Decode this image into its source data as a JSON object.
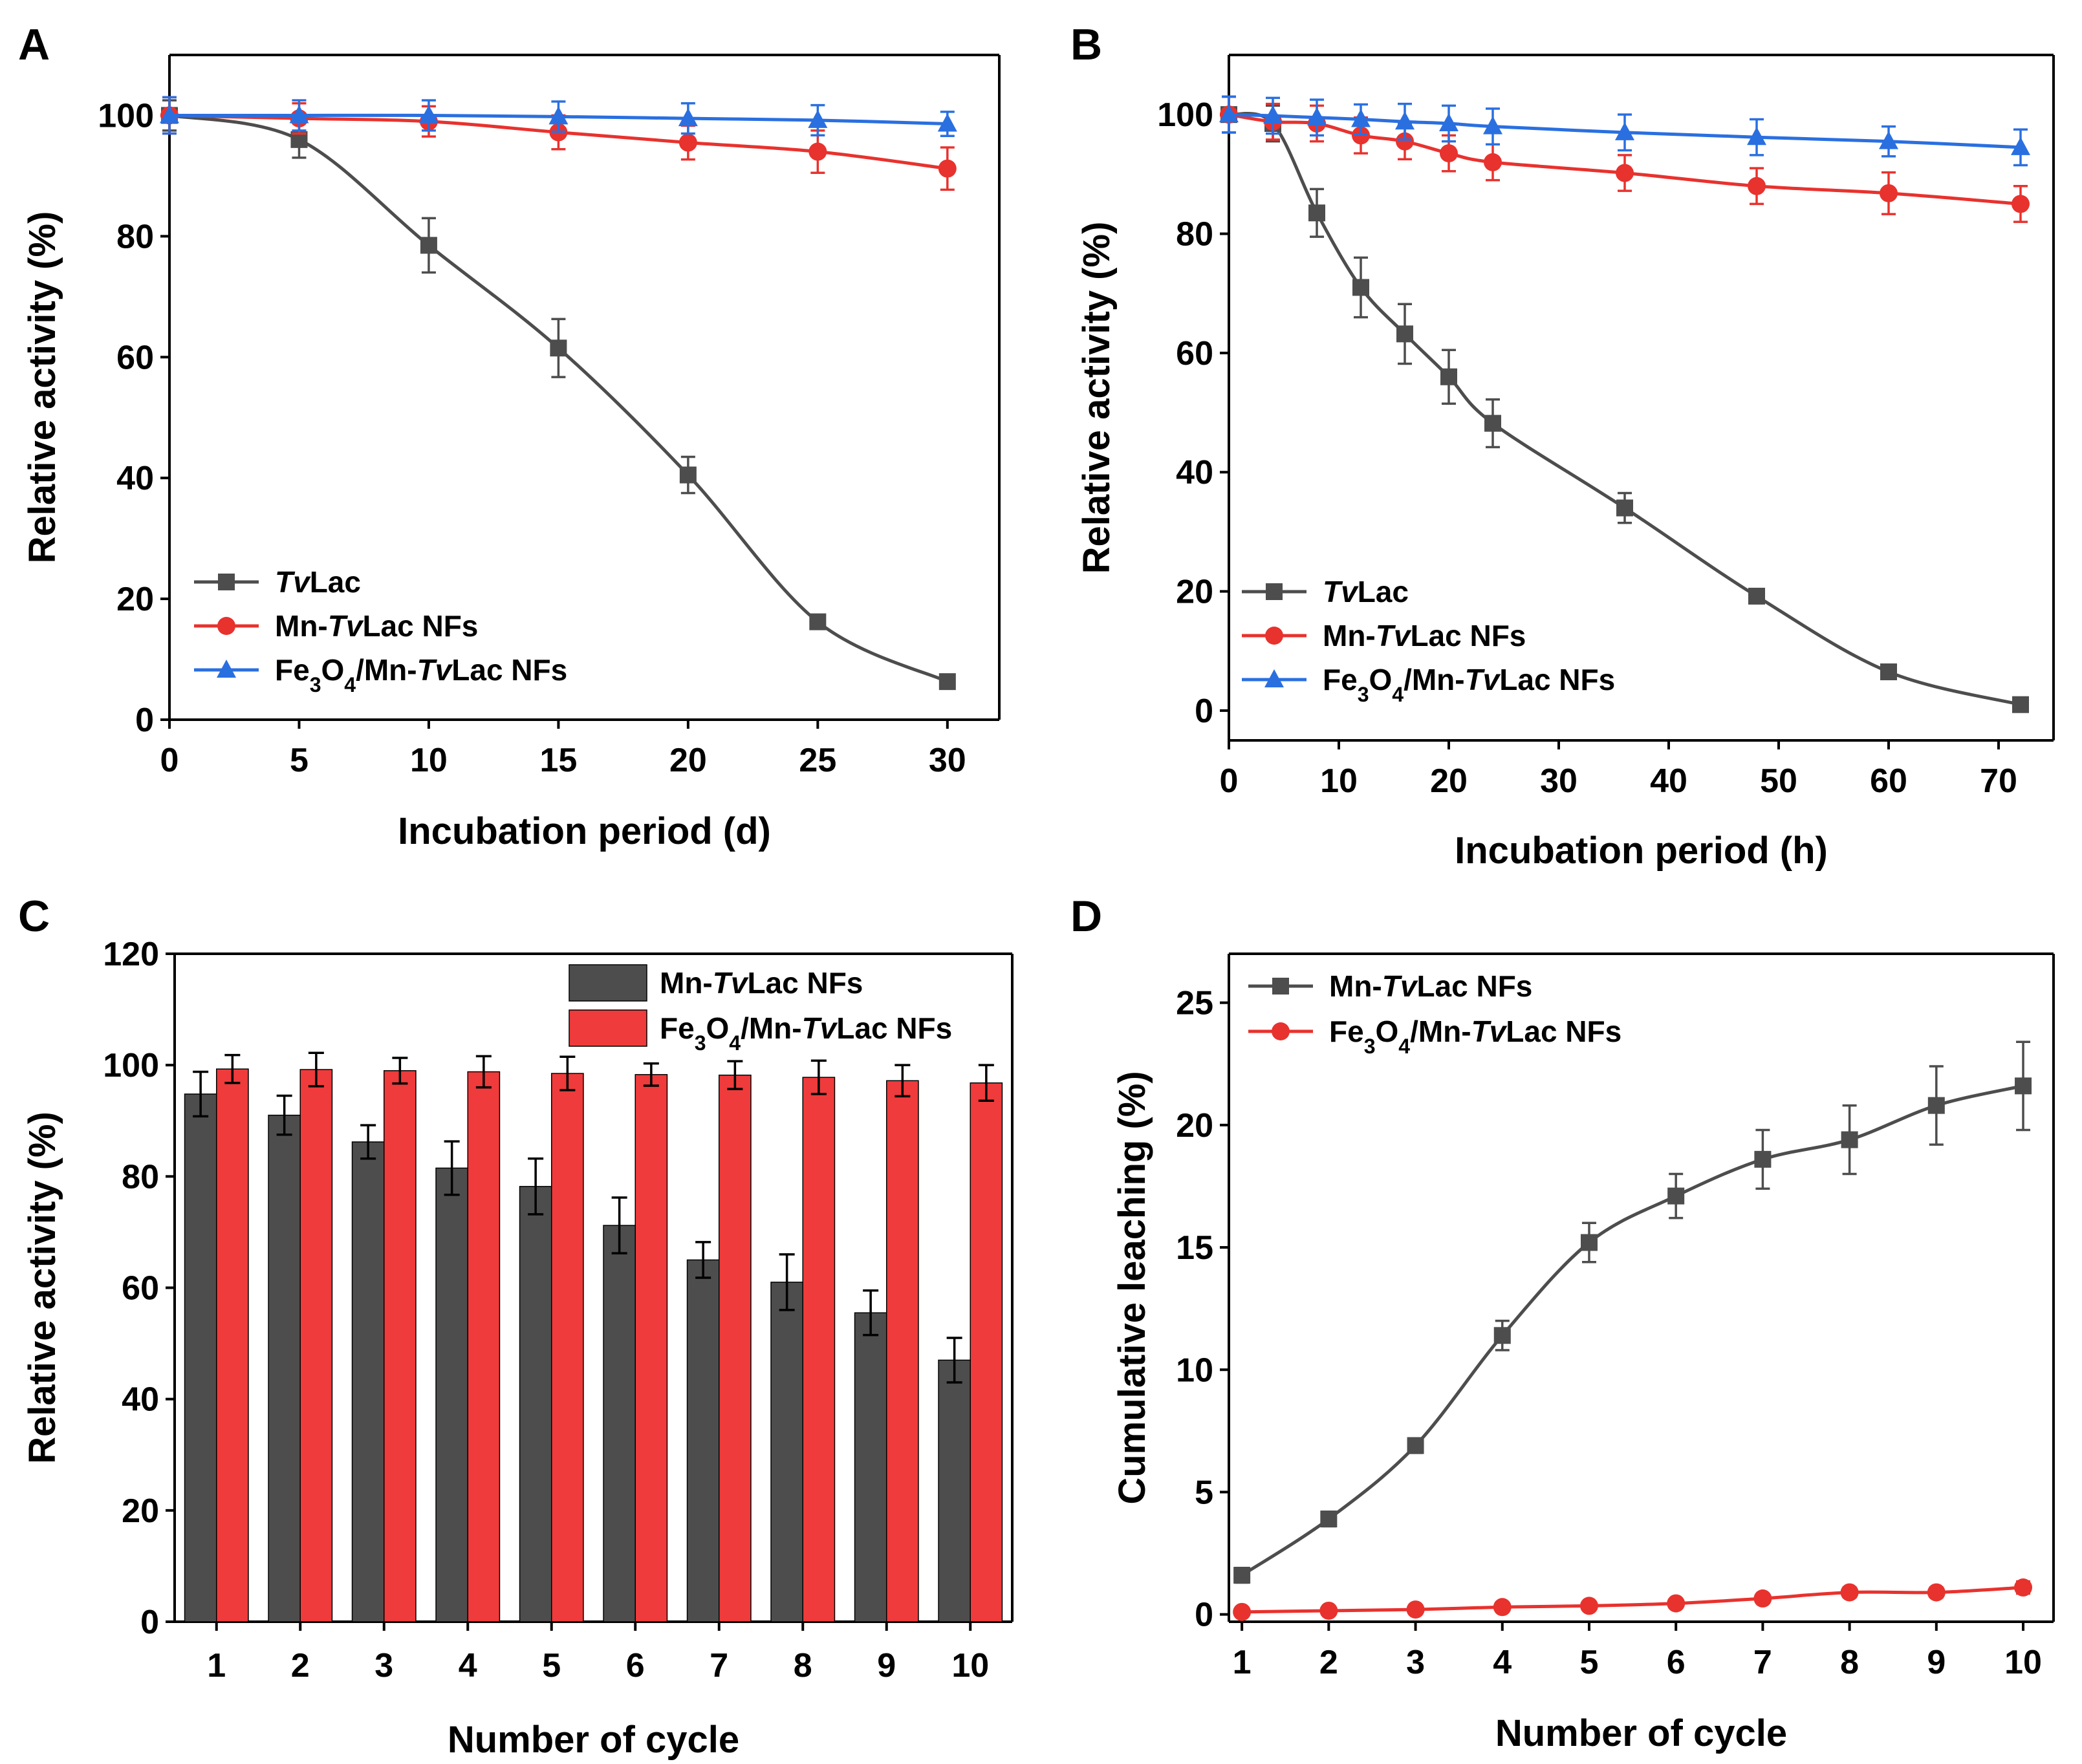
{
  "figure": {
    "panels": [
      "A",
      "B",
      "C",
      "D"
    ]
  },
  "colors": {
    "black_series": "#4d4d4d",
    "red_series": "#e8322e",
    "blue_series": "#2a6fe0",
    "bar_black": "#4d4d4d",
    "bar_red": "#ef3b3b",
    "axis": "#000000"
  },
  "chart_data": [
    {
      "id": "A",
      "type": "line",
      "panel_label": "A",
      "title": "",
      "xlabel": "Incubation period (d)",
      "ylabel": "Relative activity (%)",
      "xlim": [
        0,
        32
      ],
      "ylim": [
        0,
        110
      ],
      "xticks": [
        0,
        5,
        10,
        15,
        20,
        25,
        30
      ],
      "yticks": [
        0,
        20,
        40,
        60,
        80,
        100
      ],
      "legend_position": "bottom-left",
      "series": [
        {
          "name": "TvLac",
          "label_parts": [
            {
              "text": "Tv",
              "italic": true
            },
            {
              "text": "Lac",
              "italic": false
            }
          ],
          "marker": "square",
          "color": "#4d4d4d",
          "x": [
            0,
            5,
            10,
            15,
            20,
            25,
            30
          ],
          "y": [
            100,
            96,
            78.5,
            61.5,
            40.5,
            16.2,
            6.3
          ],
          "err": [
            2.5,
            3,
            4.5,
            4.8,
            3,
            1,
            1
          ]
        },
        {
          "name": "Mn-TvLac NFs",
          "label_parts": [
            {
              "text": "Mn-",
              "italic": false
            },
            {
              "text": "Tv",
              "italic": true
            },
            {
              "text": "Lac NFs",
              "italic": false
            }
          ],
          "marker": "circle",
          "color": "#e8322e",
          "x": [
            0,
            5,
            10,
            15,
            20,
            25,
            30
          ],
          "y": [
            100,
            99.5,
            99,
            97.2,
            95.5,
            94,
            91.2
          ],
          "err": [
            3,
            2.5,
            2.5,
            2.8,
            2.8,
            3.5,
            3.5
          ]
        },
        {
          "name": "Fe3O4/Mn-TvLac NFs",
          "label_parts": [
            {
              "text": "Fe",
              "italic": false
            },
            {
              "text": "3",
              "sub": true
            },
            {
              "text": "O",
              "italic": false
            },
            {
              "text": "4",
              "sub": true
            },
            {
              "text": "/Mn-",
              "italic": false
            },
            {
              "text": "Tv",
              "italic": true
            },
            {
              "text": "Lac NFs",
              "italic": false
            }
          ],
          "marker": "triangle",
          "color": "#2a6fe0",
          "x": [
            0,
            5,
            10,
            15,
            20,
            25,
            30
          ],
          "y": [
            100,
            100,
            100,
            99.8,
            99.5,
            99.2,
            98.6
          ],
          "err": [
            3,
            2.5,
            2.5,
            2.5,
            2.5,
            2.5,
            2
          ]
        }
      ]
    },
    {
      "id": "B",
      "type": "line",
      "panel_label": "B",
      "title": "",
      "xlabel": "Incubation period (h)",
      "ylabel": "Relative activity (%)",
      "xlim": [
        0,
        75
      ],
      "ylim": [
        -5,
        110
      ],
      "xticks": [
        0,
        10,
        20,
        30,
        40,
        50,
        60,
        70
      ],
      "yticks": [
        0,
        20,
        40,
        60,
        80,
        100
      ],
      "legend_position": "bottom-left",
      "series": [
        {
          "name": "TvLac",
          "label_parts": [
            {
              "text": "Tv",
              "italic": true
            },
            {
              "text": "Lac",
              "italic": false
            }
          ],
          "marker": "square",
          "color": "#4d4d4d",
          "x": [
            0,
            4,
            8,
            12,
            16,
            20,
            24,
            36,
            48,
            60,
            72
          ],
          "y": [
            100,
            98.5,
            83.5,
            71,
            63.2,
            56,
            48.2,
            34,
            19.2,
            6.5,
            1
          ],
          "err": [
            3,
            3,
            4,
            5,
            5,
            4.5,
            4,
            2.5,
            1.2,
            1,
            1
          ]
        },
        {
          "name": "Mn-TvLac NFs",
          "label_parts": [
            {
              "text": "Mn-",
              "italic": false
            },
            {
              "text": "Tv",
              "italic": true
            },
            {
              "text": "Lac NFs",
              "italic": false
            }
          ],
          "marker": "circle",
          "color": "#e8322e",
          "x": [
            0,
            4,
            8,
            12,
            16,
            20,
            24,
            36,
            48,
            60,
            72
          ],
          "y": [
            100,
            98.8,
            98.5,
            96.5,
            95.5,
            93.5,
            92,
            90.2,
            88,
            86.8,
            85
          ],
          "err": [
            3,
            3,
            3,
            3,
            3,
            3,
            3,
            3,
            3,
            3.5,
            3
          ]
        },
        {
          "name": "Fe3O4/Mn-TvLac NFs",
          "label_parts": [
            {
              "text": "Fe",
              "italic": false
            },
            {
              "text": "3",
              "sub": true
            },
            {
              "text": "O",
              "italic": false
            },
            {
              "text": "4",
              "sub": true
            },
            {
              "text": "/Mn-",
              "italic": false
            },
            {
              "text": "Tv",
              "italic": true
            },
            {
              "text": "Lac NFs",
              "italic": false
            }
          ],
          "marker": "triangle",
          "color": "#2a6fe0",
          "x": [
            0,
            4,
            8,
            12,
            16,
            20,
            24,
            36,
            48,
            60,
            72
          ],
          "y": [
            100,
            99.8,
            99.5,
            99.2,
            98.8,
            98.5,
            98,
            97,
            96.2,
            95.5,
            94.5
          ],
          "err": [
            3,
            3,
            3,
            2.5,
            3,
            3,
            3,
            3,
            3,
            2.5,
            3
          ]
        }
      ]
    },
    {
      "id": "C",
      "type": "bar",
      "panel_label": "C",
      "title": "",
      "xlabel": "Number of cycle",
      "ylabel": "Relative activity (%)",
      "ylim": [
        0,
        120
      ],
      "yticks": [
        0,
        20,
        40,
        60,
        80,
        100,
        120
      ],
      "categories": [
        "1",
        "2",
        "3",
        "4",
        "5",
        "6",
        "7",
        "8",
        "9",
        "10"
      ],
      "legend_position": "top-right",
      "series": [
        {
          "name": "Mn-TvLac NFs",
          "label_parts": [
            {
              "text": "Mn-",
              "italic": false
            },
            {
              "text": "Tv",
              "italic": true
            },
            {
              "text": "Lac NFs",
              "italic": false
            }
          ],
          "color": "#4d4d4d",
          "values": [
            94.8,
            91,
            86.2,
            81.5,
            78.2,
            71.2,
            65,
            61,
            55.5,
            47
          ],
          "err": [
            4,
            3.5,
            3,
            4.8,
            5,
            5,
            3.2,
            5,
            4,
            4
          ]
        },
        {
          "name": "Fe3O4/Mn-TvLac NFs",
          "label_parts": [
            {
              "text": "Fe",
              "italic": false
            },
            {
              "text": "3",
              "sub": true
            },
            {
              "text": "O",
              "italic": false
            },
            {
              "text": "4",
              "sub": true
            },
            {
              "text": "/Mn-",
              "italic": false
            },
            {
              "text": "Tv",
              "italic": true
            },
            {
              "text": "Lac NFs",
              "italic": false
            }
          ],
          "color": "#ef3b3b",
          "values": [
            99.3,
            99.2,
            99,
            98.8,
            98.5,
            98.3,
            98.2,
            97.8,
            97.2,
            96.8
          ],
          "err": [
            2.5,
            3,
            2.3,
            2.8,
            3,
            2,
            2.5,
            3,
            2.8,
            3.2
          ]
        }
      ]
    },
    {
      "id": "D",
      "type": "line",
      "panel_label": "D",
      "title": "",
      "xlabel": "Number of cycle",
      "ylabel": "Cumulative leaching (%)",
      "xlim": [
        0.85,
        10.35
      ],
      "ylim": [
        -0.3,
        27
      ],
      "xticks": [
        1,
        2,
        3,
        4,
        5,
        6,
        7,
        8,
        9,
        10
      ],
      "yticks": [
        0,
        5,
        10,
        15,
        20,
        25
      ],
      "legend_position": "top-left",
      "series": [
        {
          "name": "Mn-TvLac NFs",
          "label_parts": [
            {
              "text": "Mn-",
              "italic": false
            },
            {
              "text": "Tv",
              "italic": true
            },
            {
              "text": "Lac NFs",
              "italic": false
            }
          ],
          "marker": "square",
          "color": "#4d4d4d",
          "x": [
            1,
            2,
            3,
            4,
            5,
            6,
            7,
            8,
            9,
            10
          ],
          "y": [
            1.6,
            3.9,
            6.9,
            11.4,
            15.2,
            17.1,
            18.6,
            19.4,
            20.8,
            21.6
          ],
          "err": [
            0.3,
            0.3,
            0.3,
            0.6,
            0.8,
            0.9,
            1.2,
            1.4,
            1.6,
            1.8
          ]
        },
        {
          "name": "Fe3O4/Mn-TvLac NFs",
          "label_parts": [
            {
              "text": "Fe",
              "italic": false
            },
            {
              "text": "3",
              "sub": true
            },
            {
              "text": "O",
              "italic": false
            },
            {
              "text": "4",
              "sub": true
            },
            {
              "text": "/Mn-",
              "italic": false
            },
            {
              "text": "Tv",
              "italic": true
            },
            {
              "text": "Lac NFs",
              "italic": false
            }
          ],
          "marker": "circle",
          "color": "#e8322e",
          "x": [
            1,
            2,
            3,
            4,
            5,
            6,
            7,
            8,
            9,
            10
          ],
          "y": [
            0.1,
            0.15,
            0.2,
            0.3,
            0.35,
            0.45,
            0.65,
            0.9,
            0.9,
            1.1
          ],
          "err": [
            0.15,
            0.15,
            0.15,
            0.15,
            0.15,
            0.15,
            0.15,
            0.2,
            0.2,
            0.25
          ]
        }
      ]
    }
  ]
}
